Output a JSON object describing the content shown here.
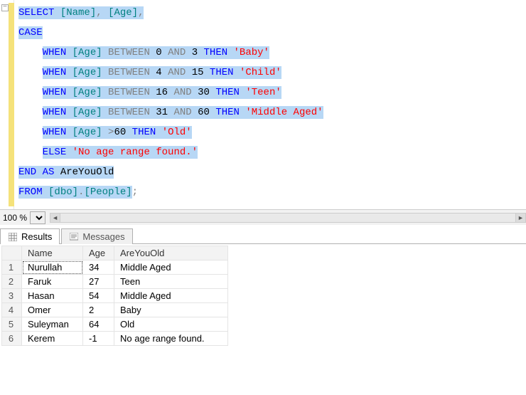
{
  "sql": {
    "tokens": [
      [
        {
          "t": "SELECT",
          "c": "kw",
          "hl": true
        },
        {
          "t": " ",
          "c": "plain",
          "hl": true
        },
        {
          "t": "[Name]",
          "c": "id",
          "hl": true
        },
        {
          "t": ",",
          "c": "gray",
          "hl": true
        },
        {
          "t": " ",
          "c": "plain",
          "hl": true
        },
        {
          "t": "[Age]",
          "c": "id",
          "hl": true
        },
        {
          "t": ",",
          "c": "gray",
          "hl": true
        }
      ],
      [
        {
          "t": "CASE",
          "c": "kw",
          "hl": true
        }
      ],
      [
        {
          "t": "    ",
          "c": "plain",
          "hl": false
        },
        {
          "t": "WHEN",
          "c": "kw",
          "hl": true
        },
        {
          "t": " ",
          "c": "plain",
          "hl": true
        },
        {
          "t": "[Age]",
          "c": "id",
          "hl": true
        },
        {
          "t": " ",
          "c": "plain",
          "hl": true
        },
        {
          "t": "BETWEEN",
          "c": "gray",
          "hl": true
        },
        {
          "t": " ",
          "c": "plain",
          "hl": true
        },
        {
          "t": "0",
          "c": "num",
          "hl": true
        },
        {
          "t": " ",
          "c": "plain",
          "hl": true
        },
        {
          "t": "AND",
          "c": "gray",
          "hl": true
        },
        {
          "t": " ",
          "c": "plain",
          "hl": true
        },
        {
          "t": "3",
          "c": "num",
          "hl": true
        },
        {
          "t": " ",
          "c": "plain",
          "hl": true
        },
        {
          "t": "THEN",
          "c": "kw",
          "hl": true
        },
        {
          "t": " ",
          "c": "plain",
          "hl": true
        },
        {
          "t": "'Baby'",
          "c": "str",
          "hl": true
        }
      ],
      [
        {
          "t": "    ",
          "c": "plain",
          "hl": false
        },
        {
          "t": "WHEN",
          "c": "kw",
          "hl": true
        },
        {
          "t": " ",
          "c": "plain",
          "hl": true
        },
        {
          "t": "[Age]",
          "c": "id",
          "hl": true
        },
        {
          "t": " ",
          "c": "plain",
          "hl": true
        },
        {
          "t": "BETWEEN",
          "c": "gray",
          "hl": true
        },
        {
          "t": " ",
          "c": "plain",
          "hl": true
        },
        {
          "t": "4",
          "c": "num",
          "hl": true
        },
        {
          "t": " ",
          "c": "plain",
          "hl": true
        },
        {
          "t": "AND",
          "c": "gray",
          "hl": true
        },
        {
          "t": " ",
          "c": "plain",
          "hl": true
        },
        {
          "t": "15",
          "c": "num",
          "hl": true
        },
        {
          "t": " ",
          "c": "plain",
          "hl": true
        },
        {
          "t": "THEN",
          "c": "kw",
          "hl": true
        },
        {
          "t": " ",
          "c": "plain",
          "hl": true
        },
        {
          "t": "'Child'",
          "c": "str",
          "hl": true
        }
      ],
      [
        {
          "t": "    ",
          "c": "plain",
          "hl": false
        },
        {
          "t": "WHEN",
          "c": "kw",
          "hl": true
        },
        {
          "t": " ",
          "c": "plain",
          "hl": true
        },
        {
          "t": "[Age]",
          "c": "id",
          "hl": true
        },
        {
          "t": " ",
          "c": "plain",
          "hl": true
        },
        {
          "t": "BETWEEN",
          "c": "gray",
          "hl": true
        },
        {
          "t": " ",
          "c": "plain",
          "hl": true
        },
        {
          "t": "16",
          "c": "num",
          "hl": true
        },
        {
          "t": " ",
          "c": "plain",
          "hl": true
        },
        {
          "t": "AND",
          "c": "gray",
          "hl": true
        },
        {
          "t": " ",
          "c": "plain",
          "hl": true
        },
        {
          "t": "30",
          "c": "num",
          "hl": true
        },
        {
          "t": " ",
          "c": "plain",
          "hl": true
        },
        {
          "t": "THEN",
          "c": "kw",
          "hl": true
        },
        {
          "t": " ",
          "c": "plain",
          "hl": true
        },
        {
          "t": "'Teen'",
          "c": "str",
          "hl": true
        }
      ],
      [
        {
          "t": "    ",
          "c": "plain",
          "hl": false
        },
        {
          "t": "WHEN",
          "c": "kw",
          "hl": true
        },
        {
          "t": " ",
          "c": "plain",
          "hl": true
        },
        {
          "t": "[Age]",
          "c": "id",
          "hl": true
        },
        {
          "t": " ",
          "c": "plain",
          "hl": true
        },
        {
          "t": "BETWEEN",
          "c": "gray",
          "hl": true
        },
        {
          "t": " ",
          "c": "plain",
          "hl": true
        },
        {
          "t": "31",
          "c": "num",
          "hl": true
        },
        {
          "t": " ",
          "c": "plain",
          "hl": true
        },
        {
          "t": "AND",
          "c": "gray",
          "hl": true
        },
        {
          "t": " ",
          "c": "plain",
          "hl": true
        },
        {
          "t": "60",
          "c": "num",
          "hl": true
        },
        {
          "t": " ",
          "c": "plain",
          "hl": true
        },
        {
          "t": "THEN",
          "c": "kw",
          "hl": true
        },
        {
          "t": " ",
          "c": "plain",
          "hl": true
        },
        {
          "t": "'Middle Aged'",
          "c": "str",
          "hl": true
        }
      ],
      [
        {
          "t": "    ",
          "c": "plain",
          "hl": false
        },
        {
          "t": "WHEN",
          "c": "kw",
          "hl": true
        },
        {
          "t": " ",
          "c": "plain",
          "hl": true
        },
        {
          "t": "[Age]",
          "c": "id",
          "hl": true
        },
        {
          "t": " ",
          "c": "plain",
          "hl": true
        },
        {
          "t": ">",
          "c": "gray",
          "hl": true
        },
        {
          "t": "60",
          "c": "num",
          "hl": true
        },
        {
          "t": " ",
          "c": "plain",
          "hl": true
        },
        {
          "t": "THEN",
          "c": "kw",
          "hl": true
        },
        {
          "t": " ",
          "c": "plain",
          "hl": true
        },
        {
          "t": "'Old'",
          "c": "str",
          "hl": true
        }
      ],
      [
        {
          "t": "    ",
          "c": "plain",
          "hl": false
        },
        {
          "t": "ELSE",
          "c": "kw",
          "hl": true
        },
        {
          "t": " ",
          "c": "plain",
          "hl": true
        },
        {
          "t": "'No age range found.'",
          "c": "str",
          "hl": true
        }
      ],
      [
        {
          "t": "END",
          "c": "kw",
          "hl": true
        },
        {
          "t": " ",
          "c": "plain",
          "hl": true
        },
        {
          "t": "AS",
          "c": "kw",
          "hl": true
        },
        {
          "t": " ",
          "c": "plain",
          "hl": true
        },
        {
          "t": "AreYouOld",
          "c": "plain",
          "hl": true
        }
      ],
      [
        {
          "t": "FROM",
          "c": "kw",
          "hl": true
        },
        {
          "t": " ",
          "c": "plain",
          "hl": true
        },
        {
          "t": "[dbo]",
          "c": "id",
          "hl": true
        },
        {
          "t": ".",
          "c": "gray",
          "hl": true
        },
        {
          "t": "[People]",
          "c": "id",
          "hl": true
        },
        {
          "t": ";",
          "c": "gray",
          "hl": false
        }
      ]
    ]
  },
  "zoom": {
    "value": "100 %"
  },
  "tabs": {
    "results": "Results",
    "messages": "Messages"
  },
  "grid": {
    "columns": [
      "Name",
      "Age",
      "AreYouOld"
    ],
    "rows": [
      [
        "Nurullah",
        "34",
        "Middle Aged"
      ],
      [
        "Faruk",
        "27",
        "Teen"
      ],
      [
        "Hasan",
        "54",
        "Middle Aged"
      ],
      [
        "Omer",
        "2",
        "Baby"
      ],
      [
        "Suleyman",
        "64",
        "Old"
      ],
      [
        "Kerem",
        "-1",
        "No age range found."
      ]
    ],
    "col_widths": [
      "86px",
      "44px",
      "160px"
    ]
  },
  "colors": {
    "keyword": "#0000ff",
    "identifier": "#008080",
    "string": "#ff0000",
    "gray": "#808080",
    "highlight_bg": "#b7d7f5",
    "change_marker": "#f5e27a"
  }
}
